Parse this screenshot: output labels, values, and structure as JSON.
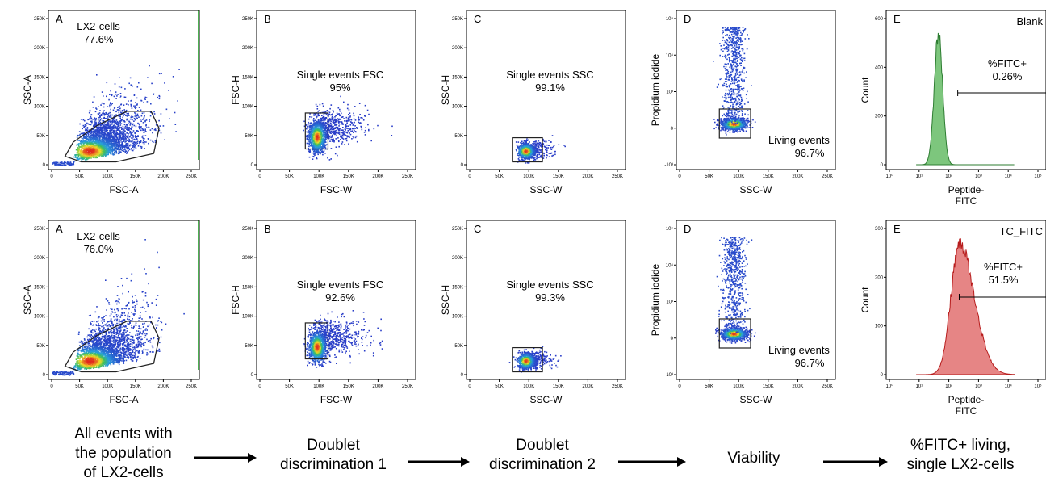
{
  "chart_data": {
    "type": "scatter",
    "note": "",
    "rows": [
      {
        "panels": [
          {
            "letter": "A",
            "xlabel": "FSC-A",
            "ylabel": "SSC-A",
            "gate_label": "LX2-cells",
            "gate_value": "77.6%",
            "xticks": [
              "0",
              "50K",
              "100K",
              "150K",
              "200K",
              "250K"
            ],
            "yticks": [
              "0",
              "50K",
              "100K",
              "150K",
              "200K",
              "250K"
            ]
          },
          {
            "letter": "B",
            "xlabel": "FSC-W",
            "ylabel": "FSC-H",
            "gate_label": "Single events FSC",
            "gate_value": "95%",
            "xticks": [
              "0",
              "50K",
              "100K",
              "150K",
              "200K",
              "250K"
            ],
            "yticks": [
              "0",
              "50K",
              "100K",
              "150K",
              "200K",
              "250K"
            ]
          },
          {
            "letter": "C",
            "xlabel": "SSC-W",
            "ylabel": "SSC-H",
            "gate_label": "Single events SSC",
            "gate_value": "99.1%",
            "xticks": [
              "0",
              "50K",
              "100K",
              "150K",
              "200K",
              "250K"
            ],
            "yticks": [
              "0",
              "50K",
              "100K",
              "150K",
              "200K",
              "250K"
            ]
          },
          {
            "letter": "D",
            "xlabel": "SSC-W",
            "ylabel": "Propidium iodide",
            "gate_label": "Living events",
            "gate_value": "96.7%",
            "xticks": [
              "0",
              "50K",
              "100K",
              "150K",
              "200K",
              "250K"
            ],
            "yticks": [
              "-10³",
              "0",
              "10³",
              "10⁴",
              "10⁵"
            ]
          },
          {
            "letter": "E",
            "xlabel": "Peptide-",
            "xlabel2": "FITC",
            "ylabel": "Count",
            "sample": "Blank",
            "gate_label": "%FITC+",
            "gate_value": "0.26%",
            "xticks": [
              "10⁰",
              "10¹",
              "10²",
              "10³",
              "10⁴",
              "10⁵"
            ],
            "yticks": [
              "0",
              "200",
              "400",
              "600"
            ]
          }
        ]
      },
      {
        "panels": [
          {
            "letter": "A",
            "xlabel": "FSC-A",
            "ylabel": "SSC-A",
            "gate_label": "LX2-cells",
            "gate_value": "76.0%",
            "xticks": [
              "0",
              "50K",
              "100K",
              "150K",
              "200K",
              "250K"
            ],
            "yticks": [
              "0",
              "50K",
              "100K",
              "150K",
              "200K",
              "250K"
            ]
          },
          {
            "letter": "B",
            "xlabel": "FSC-W",
            "ylabel": "FSC-H",
            "gate_label": "Single events FSC",
            "gate_value": "92.6%",
            "xticks": [
              "0",
              "50K",
              "100K",
              "150K",
              "200K",
              "250K"
            ],
            "yticks": [
              "0",
              "50K",
              "100K",
              "150K",
              "200K",
              "250K"
            ]
          },
          {
            "letter": "C",
            "xlabel": "SSC-W",
            "ylabel": "SSC-H",
            "gate_label": "Single events SSC",
            "gate_value": "99.3%",
            "xticks": [
              "0",
              "50K",
              "100K",
              "150K",
              "200K",
              "250K"
            ],
            "yticks": [
              "0",
              "50K",
              "100K",
              "150K",
              "200K",
              "250K"
            ]
          },
          {
            "letter": "D",
            "xlabel": "SSC-W",
            "ylabel": "Propidium iodide",
            "gate_label": "Living events",
            "gate_value": "96.7%",
            "xticks": [
              "0",
              "50K",
              "100K",
              "150K",
              "200K",
              "250K"
            ],
            "yticks": [
              "-10³",
              "0",
              "10³",
              "10⁴",
              "10⁵"
            ]
          },
          {
            "letter": "E",
            "xlabel": "Peptide-",
            "xlabel2": "FITC",
            "ylabel": "Count",
            "sample": "TC_FITC",
            "gate_label": "%FITC+",
            "gate_value": "51.5%",
            "xticks": [
              "10⁰",
              "10¹",
              "10²",
              "10³",
              "10⁴",
              "10⁵"
            ],
            "yticks": [
              "0",
              "100",
              "200",
              "300"
            ]
          }
        ]
      }
    ],
    "workflow_steps": [
      [
        "All events with",
        "the population",
        "of LX2-cells"
      ],
      [
        "Doublet",
        "discrimination 1"
      ],
      [
        "Doublet",
        "discrimination 2"
      ],
      [
        "Viability"
      ],
      [
        "%FITC+ living,",
        "single LX2-cells"
      ]
    ],
    "colors": {
      "blank_histogram": "#5cb85c",
      "tc_histogram": "#e06666",
      "density_low": "#1f3fbf",
      "density_high": "#e0281e"
    }
  }
}
